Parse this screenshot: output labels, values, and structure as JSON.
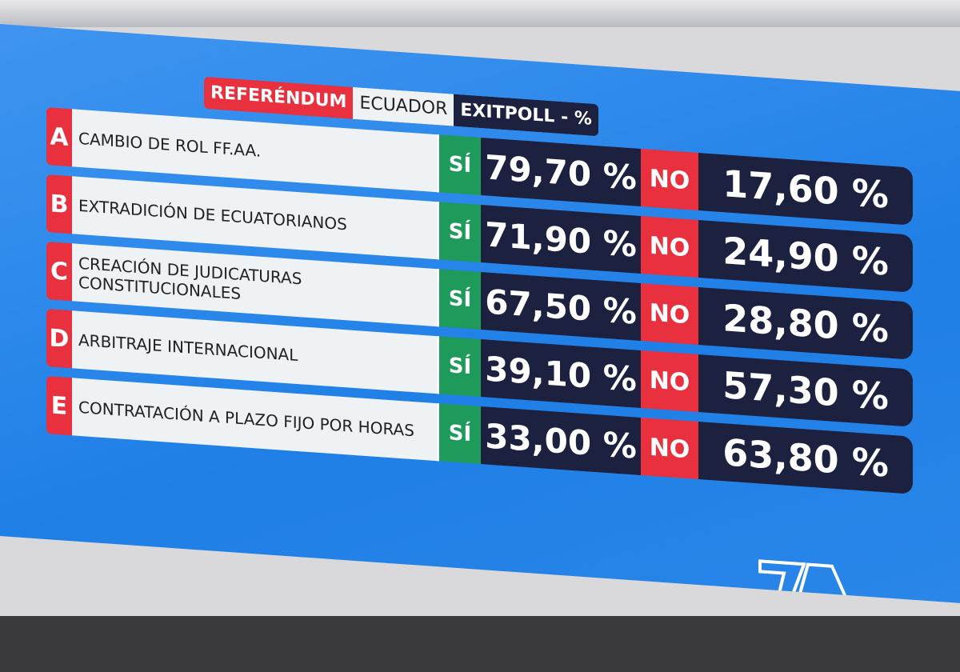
{
  "header": {
    "label": "REFERÉNDUM",
    "country": "ECUADOR",
    "type": "EXITPOLL - %"
  },
  "rows": [
    {
      "letter": "A",
      "question": "CAMBIO DE ROL FF.AA.",
      "yes_label": "SÍ",
      "yes": "79,70 %",
      "no_label": "NO",
      "no": "17,60 %"
    },
    {
      "letter": "B",
      "question": "EXTRADICIÓN DE ECUATORIANOS",
      "yes_label": "SÍ",
      "yes": "71,90 %",
      "no_label": "NO",
      "no": "24,90 %"
    },
    {
      "letter": "C",
      "question": "CREACIÓN DE JUDICATURAS CONSTITUCIONALES",
      "yes_label": "SÍ",
      "yes": "67,50 %",
      "no_label": "NO",
      "no": "28,80 %"
    },
    {
      "letter": "D",
      "question": "ARBITRAJE INTERNACIONAL",
      "yes_label": "SÍ",
      "yes": "39,10 %",
      "no_label": "NO",
      "no": "57,30 %"
    },
    {
      "letter": "E",
      "question": "CONTRATACIÓN A PLAZO FIJO  POR HORAS",
      "yes_label": "SÍ",
      "yes": "33,00 %",
      "no_label": "NO",
      "no": "63,80 %"
    }
  ]
}
